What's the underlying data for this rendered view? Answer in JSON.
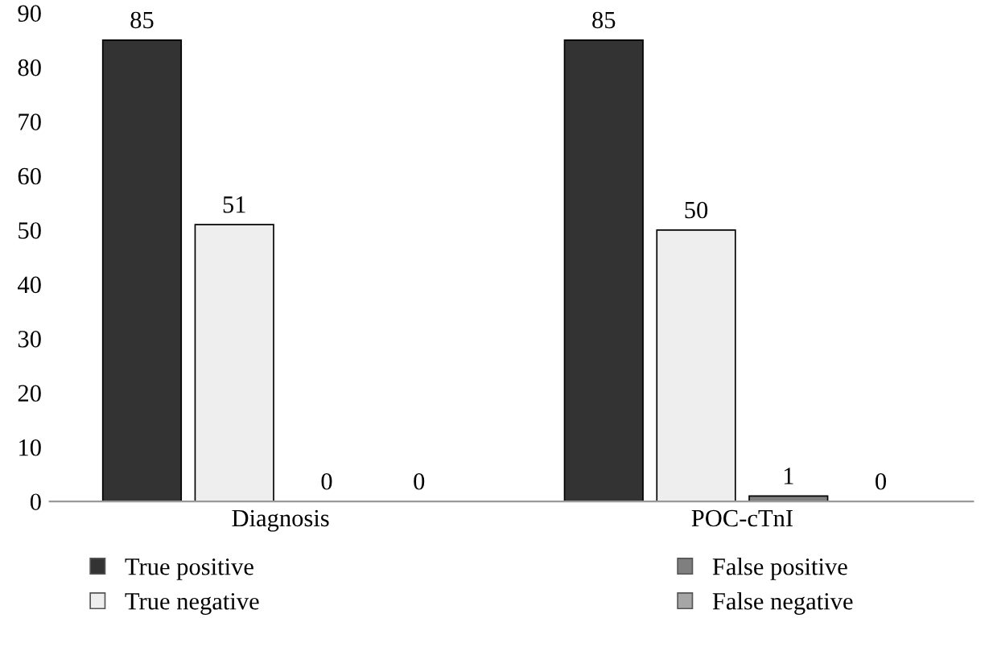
{
  "chart_data": {
    "type": "bar",
    "categories": [
      "Diagnosis",
      "POC-cTnI"
    ],
    "series": [
      {
        "name": "True positive",
        "color": "#333333",
        "values": [
          85,
          85
        ]
      },
      {
        "name": "True negative",
        "color": "#eeeeee",
        "values": [
          51,
          50
        ]
      },
      {
        "name": "False positive",
        "color": "#7f7f7f",
        "values": [
          0,
          1
        ]
      },
      {
        "name": "False negative",
        "color": "#a6a6a6",
        "values": [
          0,
          0
        ]
      }
    ],
    "ylim": [
      0,
      90
    ],
    "yticks": [
      0,
      10,
      20,
      30,
      40,
      50,
      60,
      70,
      80,
      90
    ],
    "grid": false,
    "legend": "bottom",
    "data_labels": true
  }
}
